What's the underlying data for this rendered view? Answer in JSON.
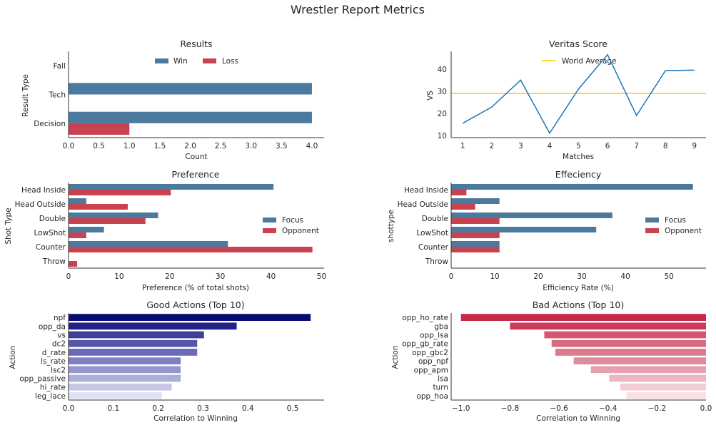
{
  "suptitle": "Wrestler Report Metrics",
  "colors": {
    "focus": "#4c7a9e",
    "opponent": "#c8424f",
    "line": "#1f77b4",
    "avg": "#ffd92f"
  },
  "chart_data": [
    {
      "id": "results",
      "type": "bar",
      "orientation": "horizontal",
      "title": "Results",
      "xlabel": "Count",
      "ylabel": "Result Type",
      "categories": [
        "Fall",
        "Tech",
        "Decision"
      ],
      "series": [
        {
          "name": "Win",
          "values": [
            0,
            4,
            4
          ]
        },
        {
          "name": "Loss",
          "values": [
            0,
            0,
            1
          ]
        }
      ],
      "xlim": [
        0,
        4.2
      ],
      "xticks": [
        "0.0",
        "0.5",
        "1.0",
        "1.5",
        "2.0",
        "2.5",
        "3.0",
        "3.5",
        "4.0"
      ],
      "legend": "top-center"
    },
    {
      "id": "veritas",
      "type": "line",
      "title": "Veritas Score",
      "xlabel": "Matches",
      "ylabel": "VS",
      "x": [
        1,
        2,
        3,
        4,
        5,
        6,
        7,
        8,
        9
      ],
      "series": [
        {
          "values": [
            15.5,
            22.8,
            35,
            11,
            31,
            46.5,
            19,
            39.3,
            39.5
          ]
        }
      ],
      "reference_line": {
        "name": "World Average",
        "value": 29
      },
      "xlim": [
        0.6,
        9.4
      ],
      "ylim": [
        9,
        48
      ],
      "xticks": [
        "1",
        "2",
        "3",
        "4",
        "5",
        "6",
        "7",
        "8",
        "9"
      ],
      "yticks": [
        "10",
        "20",
        "30",
        "40"
      ],
      "legend": "top-center"
    },
    {
      "id": "preference",
      "type": "bar",
      "orientation": "horizontal",
      "title": "Preference",
      "xlabel": "Preference (% of total shots)",
      "ylabel": "Shot Type",
      "categories": [
        "Head Inside",
        "Head Outside",
        "Double",
        "LowShot",
        "Counter",
        "Throw"
      ],
      "series": [
        {
          "name": "Focus",
          "values": [
            40.5,
            3.5,
            17.7,
            7,
            31.5,
            0
          ]
        },
        {
          "name": "Opponent",
          "values": [
            20.2,
            11.7,
            15.2,
            3.5,
            48.2,
            1.7
          ]
        }
      ],
      "xlim": [
        0,
        50.5
      ],
      "xticks": [
        "0",
        "10",
        "20",
        "30",
        "40",
        "50"
      ],
      "legend": "right"
    },
    {
      "id": "efficiency",
      "type": "bar",
      "orientation": "horizontal",
      "title": "Effeciency",
      "xlabel": "Efficiency Rate (%)",
      "ylabel": "shottype",
      "categories": [
        "Head Inside",
        "Head Outside",
        "Double",
        "LowShot",
        "Counter",
        "Throw"
      ],
      "series": [
        {
          "name": "Focus",
          "values": [
            55.5,
            11.1,
            37,
            33.3,
            11.1,
            0
          ]
        },
        {
          "name": "Opponent",
          "values": [
            3.5,
            5.5,
            11.1,
            11.1,
            11.1,
            0
          ]
        }
      ],
      "xlim": [
        0,
        58.5
      ],
      "xticks": [
        "0",
        "10",
        "20",
        "30",
        "40",
        "50"
      ],
      "legend": "right"
    },
    {
      "id": "good",
      "type": "bar",
      "orientation": "horizontal",
      "title": "Good Actions (Top 10)",
      "xlabel": "Correlation to Winning",
      "ylabel": "Action",
      "categories": [
        "npf",
        "opp_da",
        "vs",
        "dc2",
        "d_rate",
        "ls_rate",
        "lsc2",
        "opp_passive",
        "hi_rate",
        "leg_lace"
      ],
      "values": [
        0.54,
        0.375,
        0.302,
        0.287,
        0.287,
        0.25,
        0.25,
        0.25,
        0.23,
        0.208
      ],
      "colors": [
        "#0a0a73",
        "#222289",
        "#3d3d9c",
        "#5555ab",
        "#6a6ab8",
        "#7e7ec4",
        "#9696cf",
        "#adadd9",
        "#c7c7e6",
        "#e1e1f3"
      ],
      "xlim": [
        0,
        0.57
      ],
      "xticks": [
        "0.0",
        "0.1",
        "0.2",
        "0.3",
        "0.4",
        "0.5"
      ]
    },
    {
      "id": "bad",
      "type": "bar",
      "orientation": "horizontal",
      "title": "Bad Actions (Top 10)",
      "xlabel": "Correlation to Winning",
      "ylabel": "Action",
      "categories": [
        "opp_ho_rate",
        "gba",
        "opp_lsa",
        "opp_gb_rate",
        "opp_gbc2",
        "opp_npf",
        "opp_apm",
        "lsa",
        "turn",
        "opp_hoa"
      ],
      "values": [
        -1.0,
        -0.8,
        -0.66,
        -0.63,
        -0.615,
        -0.54,
        -0.47,
        -0.395,
        -0.35,
        -0.325
      ],
      "colors": [
        "#c8294a",
        "#cc3c5a",
        "#d4566f",
        "#d86a80",
        "#dc7b8f",
        "#e08c9f",
        "#e6a0b1",
        "#ebb7c4",
        "#f1cdd6",
        "#f7e1e6"
      ],
      "xlim": [
        -1.04,
        0
      ],
      "xticks": [
        "−1.0",
        "−0.8",
        "−0.6",
        "−0.4",
        "−0.2",
        "0.0"
      ]
    }
  ]
}
